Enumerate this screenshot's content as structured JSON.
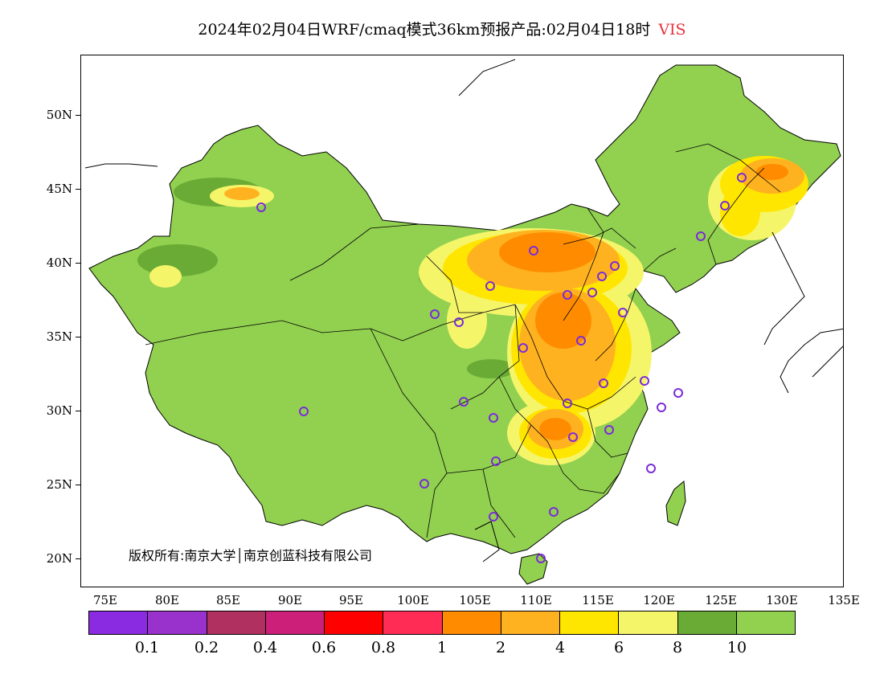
{
  "header": {
    "title": "2024年02月04日WRF/cmaq模式36km预报产品:02月04日18时",
    "variable": "VIS"
  },
  "map": {
    "lat_ticks": [
      "50N",
      "45N",
      "40N",
      "35N",
      "30N",
      "25N",
      "20N"
    ],
    "lon_ticks": [
      "75E",
      "80E",
      "85E",
      "90E",
      "95E",
      "100E",
      "105E",
      "110E",
      "115E",
      "120E",
      "125E",
      "130E",
      "135E"
    ],
    "extent": {
      "lon_min": 73,
      "lon_max": 135,
      "lat_min": 18,
      "lat_max": 54
    },
    "copyright": "版权所有:南京大学│南京创蓝科技有限公司",
    "station_marker_color": "#7b2bd9",
    "fill_colors": {
      "land": "#92d050",
      "dark_green": "#6aab36",
      "light_yellow": "#f5f56a",
      "yellow": "#ffe600",
      "light_orange": "#ffb21f",
      "orange": "#ff8c00"
    }
  },
  "colorbar": {
    "colors": [
      "#8a2be2",
      "#9932cc",
      "#b03060",
      "#cc1f7a",
      "#ff0000",
      "#ff2d55",
      "#ff8c00",
      "#ffb21f",
      "#ffe600",
      "#f5f56a",
      "#6aab36",
      "#92d050"
    ],
    "labels": [
      "0.1",
      "0.2",
      "0.4",
      "0.6",
      "0.8",
      "1",
      "2",
      "4",
      "6",
      "8",
      "10"
    ]
  }
}
